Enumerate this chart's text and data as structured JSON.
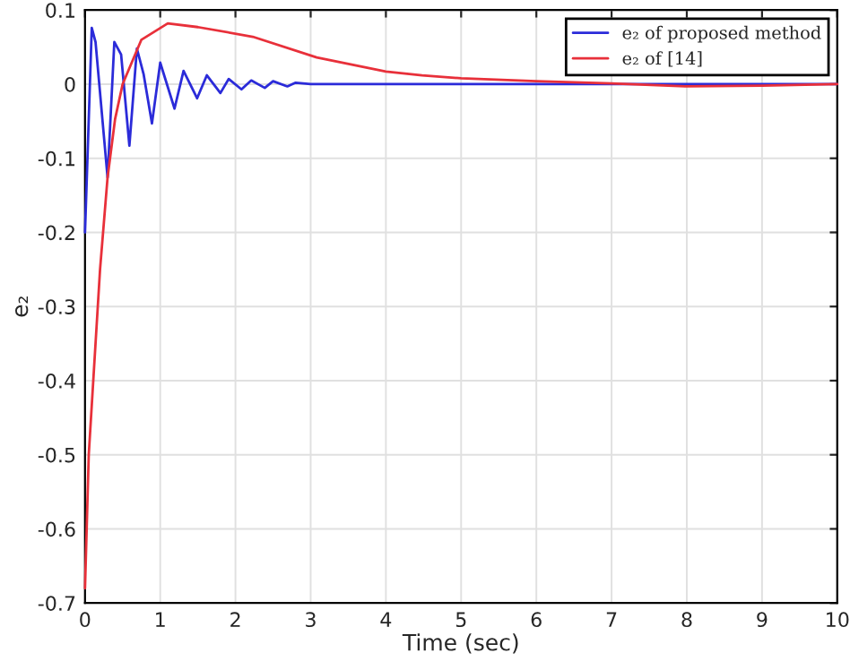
{
  "chart_data": {
    "type": "line",
    "xlabel": "Time (sec)",
    "ylabel": "e₂",
    "xlim": [
      0,
      10
    ],
    "ylim": [
      -0.7,
      0.1
    ],
    "xticks": [
      0,
      1,
      2,
      3,
      4,
      5,
      6,
      7,
      8,
      9,
      10
    ],
    "yticks": [
      -0.7,
      -0.6,
      -0.5,
      -0.4,
      -0.3,
      -0.2,
      -0.1,
      0,
      0.1
    ],
    "grid": true,
    "legend": "top right",
    "line_style": "solid",
    "marker": "none",
    "series": [
      {
        "name": "e₂ of proposed method",
        "color": "#2b2bd9",
        "x": [
          0,
          0.09,
          0.14,
          0.3,
          0.39,
          0.48,
          0.59,
          0.69,
          0.78,
          0.89,
          1.0,
          1.19,
          1.31,
          1.49,
          1.62,
          1.8,
          1.91,
          2.08,
          2.21,
          2.39,
          2.5,
          2.69,
          2.8,
          3.0,
          3.5,
          4,
          5,
          6,
          7,
          8,
          9,
          10
        ],
        "values": [
          -0.2,
          0.076,
          0.057,
          -0.126,
          0.057,
          0.04,
          -0.083,
          0.048,
          0.013,
          -0.053,
          0.029,
          -0.033,
          0.018,
          -0.019,
          0.012,
          -0.012,
          0.007,
          -0.007,
          0.005,
          -0.005,
          0.004,
          -0.003,
          0.002,
          0,
          0,
          0,
          0,
          0,
          0,
          0,
          0,
          0
        ]
      },
      {
        "name": "e₂ of [14]",
        "color": "#e8303a",
        "x": [
          0,
          0.05,
          0.2,
          0.3,
          0.4,
          0.5,
          0.75,
          1.1,
          1.5,
          2.23,
          3.08,
          4.0,
          4.48,
          5,
          6,
          7,
          8,
          9,
          10
        ],
        "values": [
          -0.68,
          -0.5,
          -0.25,
          -0.126,
          -0.047,
          0,
          0.06,
          0.082,
          0.077,
          0.064,
          0.036,
          0.017,
          0.012,
          0.008,
          0.004,
          0.001,
          -0.003,
          -0.002,
          0
        ]
      }
    ]
  }
}
